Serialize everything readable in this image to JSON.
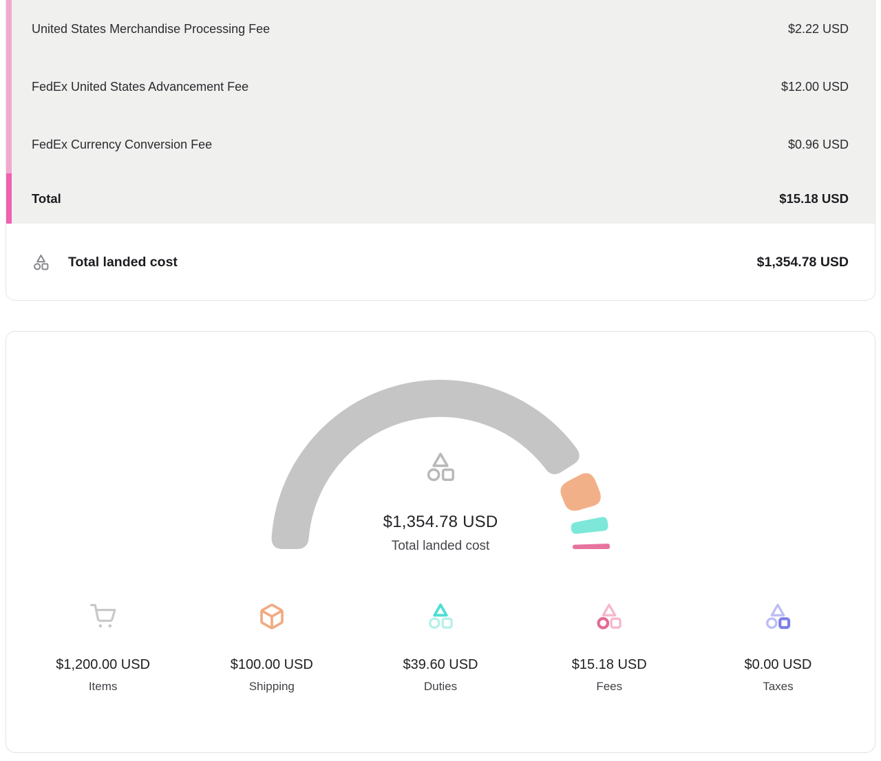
{
  "colors": {
    "table_bg": "#f0f0ef",
    "stripe_light": "#f2a9d0",
    "stripe_dark": "#ee62b0",
    "card_border": "#e5e5e8",
    "text_primary": "#2b2b2f",
    "text_secondary": "#45454b"
  },
  "fees_table": {
    "rows": [
      {
        "label": "United States Merchandise Processing Fee",
        "value": "$2.22 USD"
      },
      {
        "label": "FedEx United States Advancement Fee",
        "value": "$12.00 USD"
      },
      {
        "label": "FedEx Currency Conversion Fee",
        "value": "$0.96 USD"
      }
    ],
    "total_row": {
      "label": "Total",
      "value": "$15.18 USD"
    }
  },
  "summary_row": {
    "icon": "landed-cost-logo-icon",
    "icon_color": "#87878c",
    "label": "Total landed cost",
    "value": "$1,354.78 USD"
  },
  "chart_data": {
    "type": "pie",
    "variant": "half-donut-gauge",
    "title": "Total landed cost",
    "center_icon": "landed-cost-logo-icon",
    "center_icon_color": "#b9b9b9",
    "center_value": "$1,354.78 USD",
    "center_label": "Total landed cost",
    "total": 1354.78,
    "unit": "USD",
    "segments": [
      {
        "name": "Items",
        "value": 1200.0,
        "color": "#c5c5c6"
      },
      {
        "name": "Shipping",
        "value": 100.0,
        "color": "#f2b088"
      },
      {
        "name": "Duties",
        "value": 39.6,
        "color": "#7de8da"
      },
      {
        "name": "Fees",
        "value": 15.18,
        "color": "#e8739e"
      },
      {
        "name": "Taxes",
        "value": 0.0,
        "color": "#a3a6ee"
      }
    ],
    "layout": {
      "start_angle_deg": 180,
      "end_angle_deg": 0,
      "pad_angle_deg": 4.5,
      "corner_radius": 17,
      "inner_radius": 192,
      "outer_radius": 246,
      "legend": "none",
      "grid": false
    }
  },
  "stats": [
    {
      "value": "$1,200.00 USD",
      "label": "Items",
      "icon": "cart-icon",
      "icon_color": "#c7c7c9"
    },
    {
      "value": "$100.00 USD",
      "label": "Shipping",
      "icon": "package-icon",
      "icon_color": "#f0aa80"
    },
    {
      "value": "$39.60 USD",
      "label": "Duties",
      "icon": "duties-shapes-icon",
      "icon_accent": "#4edfd2",
      "icon_muted": "#b5f0e9"
    },
    {
      "value": "$15.18 USD",
      "label": "Fees",
      "icon": "fees-shapes-icon",
      "icon_accent": "#e56b96",
      "icon_muted": "#f5b7cd"
    },
    {
      "value": "$0.00 USD",
      "label": "Taxes",
      "icon": "taxes-shapes-icon",
      "icon_accent": "#7d80e8",
      "icon_muted": "#bbbdf4"
    }
  ]
}
